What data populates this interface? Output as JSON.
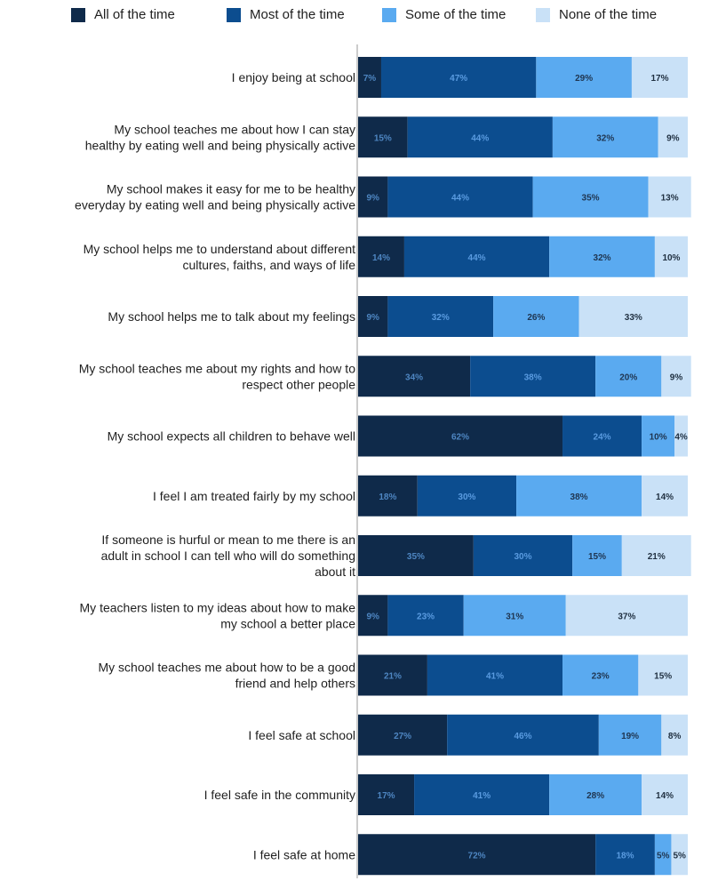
{
  "chart_data": {
    "type": "bar",
    "orientation": "horizontal",
    "stacked": true,
    "legend_position": "top",
    "grid": false,
    "xlim": [
      0,
      100
    ],
    "categories": [
      [
        "I enjoy being at school"
      ],
      [
        "My school teaches me about how I can stay",
        "healthy by eating well and being physically active"
      ],
      [
        "My school makes it easy for me to be healthy",
        "everyday by eating well and being physically active"
      ],
      [
        "My school helps me to understand about different",
        "cultures, faiths, and ways of life"
      ],
      [
        "My school helps me to talk about my feelings"
      ],
      [
        "My school teaches me about my rights and how to",
        "respect other people"
      ],
      [
        "My school expects all children to behave well"
      ],
      [
        "I feel I am treated fairly by my school"
      ],
      [
        "If someone is hurful or mean to me there is an",
        "adult in school I can tell who will do something",
        "about it"
      ],
      [
        "My teachers listen to my ideas about how to make",
        "my school a better place"
      ],
      [
        "My school teaches me about how to be a good",
        "friend and help others"
      ],
      [
        "I feel safe at school"
      ],
      [
        "I feel safe in the community"
      ],
      [
        "I feel safe at home"
      ]
    ],
    "series": [
      {
        "name": "All of the time",
        "color": "#0f2a4a",
        "label_color": "#4e86c2",
        "values": [
          7,
          15,
          9,
          14,
          9,
          34,
          62,
          18,
          35,
          9,
          21,
          27,
          17,
          72
        ]
      },
      {
        "name": "Most of the time",
        "color": "#0c4d8f",
        "label_color": "#5a9be0",
        "values": [
          47,
          44,
          44,
          44,
          32,
          38,
          24,
          30,
          30,
          23,
          41,
          46,
          41,
          18
        ]
      },
      {
        "name": "Some of the time",
        "color": "#5aaaf0",
        "label_color": "#1f3550",
        "values": [
          29,
          32,
          35,
          32,
          26,
          20,
          10,
          38,
          15,
          31,
          23,
          19,
          28,
          5
        ]
      },
      {
        "name": "None of the time",
        "color": "#c9e1f7",
        "label_color": "#1f2f40",
        "values": [
          17,
          9,
          13,
          10,
          33,
          9,
          4,
          14,
          21,
          37,
          15,
          8,
          14,
          5
        ]
      }
    ]
  }
}
